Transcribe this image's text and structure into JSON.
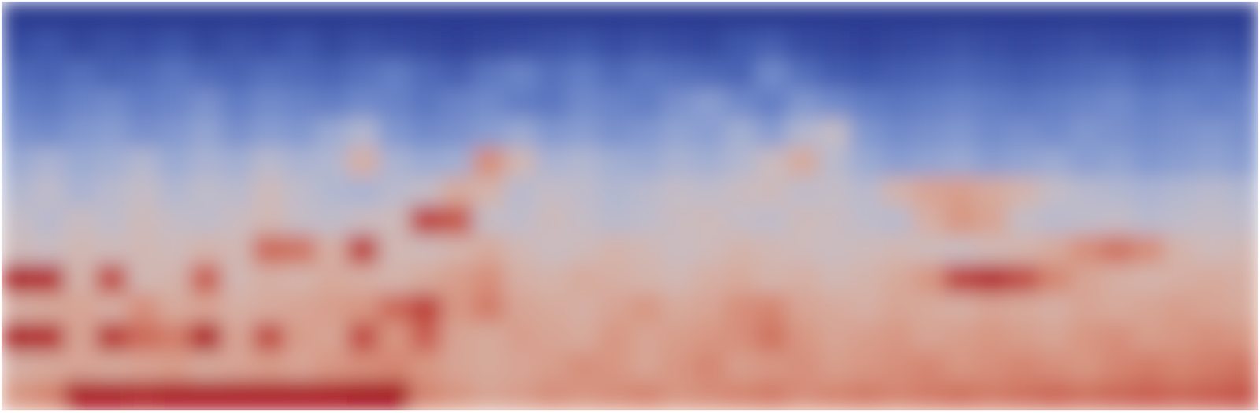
{
  "chart_data": {
    "type": "heatmap",
    "tick_labels": false,
    "values": [
      [
        0.03,
        0.03,
        0.03,
        0.03,
        0.03,
        0.03,
        0.03,
        0.03,
        0.03,
        0.03,
        0.03,
        0.03,
        0.03,
        0.03,
        0.03,
        0.03,
        0.03,
        0.03,
        0.03,
        0.03,
        0.03,
        0.03,
        0.03,
        0.03,
        0.03,
        0.03,
        0.03,
        0.03,
        0.03,
        0.03,
        0.03,
        0.03,
        0.03,
        0.03,
        0.03,
        0.03,
        0.03,
        0.03,
        0.03,
        0.03
      ],
      [
        0.1,
        0.14,
        0.08,
        0.12,
        0.1,
        0.14,
        0.08,
        0.12,
        0.1,
        0.14,
        0.08,
        0.12,
        0.1,
        0.08,
        0.06,
        0.08,
        0.1,
        0.12,
        0.14,
        0.1,
        0.12,
        0.1,
        0.08,
        0.14,
        0.16,
        0.1,
        0.08,
        0.06,
        0.08,
        0.1,
        0.12,
        0.1,
        0.08,
        0.1,
        0.12,
        0.1,
        0.08,
        0.1,
        0.12,
        0.1
      ],
      [
        0.2,
        0.18,
        0.22,
        0.18,
        0.2,
        0.24,
        0.2,
        0.18,
        0.22,
        0.2,
        0.18,
        0.22,
        0.26,
        0.2,
        0.16,
        0.24,
        0.28,
        0.22,
        0.26,
        0.2,
        0.24,
        0.22,
        0.2,
        0.18,
        0.3,
        0.22,
        0.16,
        0.14,
        0.16,
        0.18,
        0.2,
        0.18,
        0.16,
        0.18,
        0.2,
        0.22,
        0.18,
        0.2,
        0.22,
        0.2
      ],
      [
        0.26,
        0.24,
        0.28,
        0.3,
        0.26,
        0.28,
        0.32,
        0.26,
        0.3,
        0.28,
        0.26,
        0.3,
        0.28,
        0.24,
        0.28,
        0.3,
        0.26,
        0.24,
        0.3,
        0.28,
        0.26,
        0.32,
        0.36,
        0.3,
        0.26,
        0.34,
        0.3,
        0.26,
        0.24,
        0.26,
        0.28,
        0.26,
        0.24,
        0.26,
        0.28,
        0.3,
        0.26,
        0.28,
        0.26,
        0.28
      ],
      [
        0.32,
        0.3,
        0.34,
        0.36,
        0.32,
        0.34,
        0.38,
        0.32,
        0.36,
        0.34,
        0.4,
        0.46,
        0.34,
        0.3,
        0.32,
        0.36,
        0.4,
        0.34,
        0.36,
        0.32,
        0.34,
        0.38,
        0.36,
        0.42,
        0.36,
        0.46,
        0.52,
        0.34,
        0.3,
        0.32,
        0.34,
        0.3,
        0.32,
        0.3,
        0.34,
        0.32,
        0.3,
        0.32,
        0.34,
        0.32
      ],
      [
        0.4,
        0.44,
        0.4,
        0.42,
        0.46,
        0.4,
        0.44,
        0.42,
        0.48,
        0.44,
        0.46,
        0.62,
        0.44,
        0.4,
        0.42,
        0.72,
        0.58,
        0.44,
        0.46,
        0.42,
        0.4,
        0.44,
        0.42,
        0.46,
        0.54,
        0.64,
        0.48,
        0.4,
        0.36,
        0.38,
        0.4,
        0.36,
        0.38,
        0.4,
        0.36,
        0.38,
        0.34,
        0.36,
        0.38,
        0.36
      ],
      [
        0.46,
        0.5,
        0.44,
        0.48,
        0.52,
        0.46,
        0.5,
        0.48,
        0.56,
        0.5,
        0.46,
        0.44,
        0.48,
        0.52,
        0.64,
        0.6,
        0.48,
        0.52,
        0.5,
        0.46,
        0.48,
        0.52,
        0.5,
        0.54,
        0.56,
        0.5,
        0.52,
        0.48,
        0.6,
        0.66,
        0.68,
        0.64,
        0.6,
        0.52,
        0.48,
        0.46,
        0.44,
        0.46,
        0.48,
        0.46
      ],
      [
        0.52,
        0.48,
        0.54,
        0.5,
        0.56,
        0.52,
        0.5,
        0.54,
        0.58,
        0.52,
        0.5,
        0.54,
        0.56,
        0.88,
        0.84,
        0.52,
        0.5,
        0.56,
        0.52,
        0.48,
        0.5,
        0.54,
        0.56,
        0.52,
        0.5,
        0.56,
        0.54,
        0.5,
        0.48,
        0.62,
        0.7,
        0.66,
        0.52,
        0.48,
        0.5,
        0.52,
        0.48,
        0.5,
        0.52,
        0.5
      ],
      [
        0.56,
        0.54,
        0.58,
        0.56,
        0.58,
        0.56,
        0.6,
        0.58,
        0.8,
        0.78,
        0.62,
        0.88,
        0.58,
        0.56,
        0.6,
        0.64,
        0.58,
        0.54,
        0.56,
        0.6,
        0.58,
        0.54,
        0.56,
        0.6,
        0.58,
        0.56,
        0.54,
        0.56,
        0.58,
        0.56,
        0.54,
        0.58,
        0.6,
        0.64,
        0.72,
        0.78,
        0.72,
        0.6,
        0.56,
        0.58
      ],
      [
        0.94,
        0.92,
        0.6,
        0.86,
        0.58,
        0.6,
        0.82,
        0.58,
        0.62,
        0.6,
        0.64,
        0.62,
        0.6,
        0.64,
        0.68,
        0.72,
        0.62,
        0.6,
        0.64,
        0.62,
        0.6,
        0.58,
        0.62,
        0.64,
        0.6,
        0.62,
        0.58,
        0.6,
        0.64,
        0.7,
        0.88,
        0.92,
        0.86,
        0.74,
        0.66,
        0.62,
        0.6,
        0.62,
        0.64,
        0.62
      ],
      [
        0.62,
        0.64,
        0.66,
        0.62,
        0.72,
        0.64,
        0.66,
        0.62,
        0.64,
        0.66,
        0.68,
        0.7,
        0.8,
        0.88,
        0.7,
        0.76,
        0.66,
        0.64,
        0.62,
        0.66,
        0.7,
        0.64,
        0.66,
        0.72,
        0.74,
        0.66,
        0.64,
        0.62,
        0.66,
        0.64,
        0.62,
        0.66,
        0.64,
        0.62,
        0.66,
        0.64,
        0.66,
        0.68,
        0.66,
        0.64
      ],
      [
        0.94,
        0.92,
        0.66,
        0.9,
        0.8,
        0.76,
        0.94,
        0.66,
        0.86,
        0.68,
        0.66,
        0.86,
        0.7,
        0.82,
        0.66,
        0.64,
        0.68,
        0.66,
        0.64,
        0.7,
        0.66,
        0.68,
        0.7,
        0.72,
        0.78,
        0.7,
        0.66,
        0.68,
        0.7,
        0.66,
        0.68,
        0.7,
        0.68,
        0.66,
        0.7,
        0.72,
        0.68,
        0.7,
        0.72,
        0.7
      ],
      [
        0.62,
        0.64,
        0.66,
        0.64,
        0.66,
        0.68,
        0.64,
        0.66,
        0.68,
        0.66,
        0.7,
        0.72,
        0.74,
        0.7,
        0.66,
        0.64,
        0.66,
        0.68,
        0.72,
        0.7,
        0.66,
        0.7,
        0.74,
        0.68,
        0.7,
        0.72,
        0.68,
        0.7,
        0.72,
        0.74,
        0.7,
        0.72,
        0.74,
        0.72,
        0.7,
        0.74,
        0.76,
        0.74,
        0.76,
        0.78
      ],
      [
        0.7,
        0.74,
        0.96,
        0.96,
        0.94,
        0.96,
        0.96,
        0.96,
        0.96,
        0.96,
        0.96,
        0.98,
        0.98,
        0.74,
        0.7,
        0.66,
        0.68,
        0.72,
        0.7,
        0.72,
        0.74,
        0.7,
        0.72,
        0.74,
        0.76,
        0.72,
        0.74,
        0.76,
        0.74,
        0.76,
        0.78,
        0.76,
        0.78,
        0.8,
        0.78,
        0.8,
        0.82,
        0.8,
        0.82,
        0.84
      ]
    ]
  }
}
